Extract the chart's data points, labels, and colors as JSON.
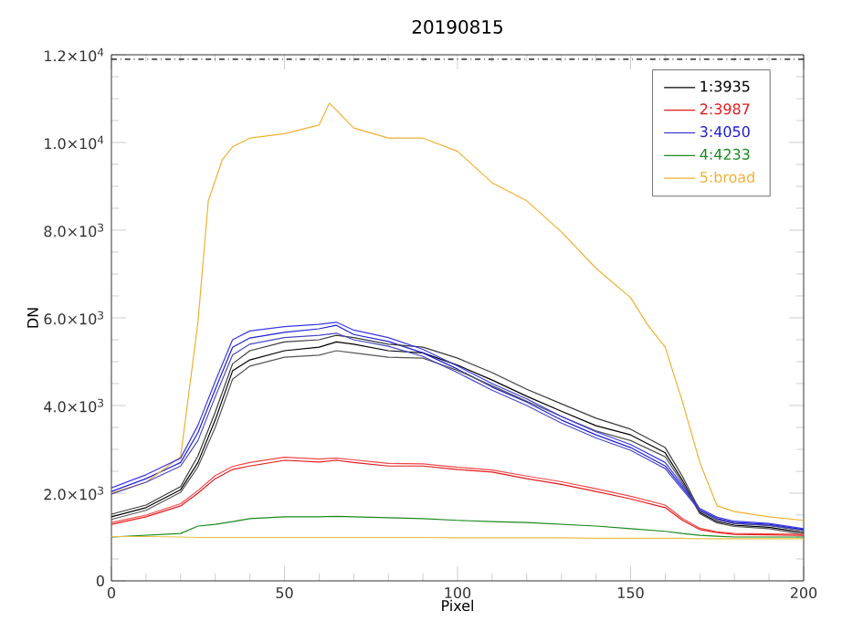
{
  "chart_data": {
    "type": "line",
    "title": "20190815",
    "xlabel": "Pixel",
    "ylabel": "DN",
    "x": [
      0,
      10,
      20,
      25,
      30,
      35,
      40,
      50,
      60,
      65,
      70,
      80,
      90,
      100,
      110,
      120,
      130,
      140,
      150,
      160,
      165,
      170,
      175,
      180,
      190,
      200
    ],
    "series": [
      {
        "name": "1:3935",
        "color": "#000000",
        "values": [
          1460,
          1670,
          2080,
          2700,
          3670,
          4790,
          5040,
          5250,
          5330,
          5450,
          5400,
          5250,
          5200,
          4920,
          4580,
          4210,
          3870,
          3540,
          3330,
          2920,
          2290,
          1560,
          1350,
          1270,
          1220,
          1100
        ]
      },
      {
        "name": "2:3987",
        "color": "#e41a1c",
        "values": [
          1290,
          1460,
          1710,
          2000,
          2330,
          2540,
          2620,
          2750,
          2710,
          2750,
          2700,
          2620,
          2620,
          2540,
          2480,
          2330,
          2200,
          2040,
          1870,
          1670,
          1380,
          1170,
          1100,
          1060,
          1050,
          1040
        ]
      },
      {
        "name": "3:4050",
        "color": "#1f1fd0",
        "values": [
          2040,
          2330,
          2700,
          3380,
          4370,
          5330,
          5540,
          5670,
          5750,
          5830,
          5620,
          5460,
          5200,
          4830,
          4420,
          4080,
          3670,
          3330,
          3040,
          2620,
          2130,
          1620,
          1420,
          1330,
          1290,
          1170
        ]
      },
      {
        "name": "4:4233",
        "color": "#1a8a1a",
        "values": [
          1000,
          1040,
          1080,
          1250,
          1290,
          1350,
          1420,
          1460,
          1460,
          1470,
          1460,
          1440,
          1420,
          1380,
          1350,
          1330,
          1290,
          1250,
          1190,
          1130,
          1080,
          1040,
          1020,
          1000,
          1000,
          1000
        ]
      },
      {
        "name": "5:broad",
        "color": "#f0b030",
        "x": [
          0,
          10,
          20,
          25,
          28,
          32,
          35,
          40,
          50,
          60,
          63,
          70,
          80,
          90,
          100,
          110,
          120,
          130,
          140,
          150,
          155,
          160,
          165,
          170,
          175,
          180,
          190,
          200
        ],
        "values": [
          2000,
          2250,
          2830,
          5900,
          8670,
          9600,
          9900,
          10100,
          10200,
          10400,
          10900,
          10330,
          10100,
          10100,
          9800,
          9080,
          8670,
          7960,
          7130,
          6460,
          5830,
          5330,
          4080,
          2700,
          1710,
          1580,
          1460,
          1380
        ]
      },
      {
        "color": "#3a3a3a",
        "values": [
          1520,
          1730,
          2150,
          2850,
          3850,
          4950,
          5250,
          5450,
          5500,
          5600,
          5550,
          5400,
          5330,
          5080,
          4750,
          4370,
          4040,
          3710,
          3460,
          3040,
          2380,
          1600,
          1390,
          1310,
          1260,
          1150
        ]
      },
      {
        "color": "#555555",
        "values": [
          1400,
          1610,
          2020,
          2600,
          3500,
          4600,
          4900,
          5100,
          5150,
          5250,
          5200,
          5100,
          5080,
          4800,
          4450,
          4100,
          3750,
          3420,
          3200,
          2830,
          2230,
          1530,
          1320,
          1240,
          1190,
          1060
        ]
      },
      {
        "color": "#3838e8",
        "values": [
          2120,
          2420,
          2800,
          3550,
          4550,
          5500,
          5700,
          5800,
          5850,
          5900,
          5720,
          5550,
          5280,
          4900,
          4500,
          4150,
          3750,
          3400,
          3110,
          2700,
          2180,
          1650,
          1450,
          1360,
          1310,
          1190
        ]
      },
      {
        "color": "#4848c0",
        "values": [
          1980,
          2250,
          2620,
          3200,
          4200,
          5150,
          5400,
          5550,
          5600,
          5650,
          5500,
          5350,
          5120,
          4750,
          4350,
          4000,
          3600,
          3260,
          2980,
          2560,
          2080,
          1600,
          1400,
          1310,
          1270,
          1150
        ]
      },
      {
        "color": "#f04848",
        "values": [
          1330,
          1500,
          1760,
          2060,
          2400,
          2610,
          2700,
          2820,
          2780,
          2800,
          2760,
          2680,
          2670,
          2590,
          2530,
          2390,
          2260,
          2100,
          1930,
          1730,
          1420,
          1200,
          1120,
          1080,
          1070,
          1060
        ]
      },
      {
        "color": "#e8c040",
        "values": [
          1010,
          1010,
          1000,
          990,
          990,
          990,
          990,
          990,
          990,
          990,
          990,
          990,
          990,
          980,
          980,
          980,
          980,
          970,
          970,
          970,
          970,
          960,
          960,
          960,
          960,
          960
        ]
      }
    ],
    "xlim": [
      0,
      200
    ],
    "xticks": [
      0,
      50,
      100,
      150,
      200
    ],
    "ylim": [
      0,
      12000
    ],
    "yticks": [
      0,
      {
        "value": 2000,
        "label": "2.0×10$^{3}$"
      },
      {
        "value": 4000,
        "label": "4.0×10$^{3}$"
      },
      {
        "value": 6000,
        "label": "6.0×10$^{3}$"
      },
      {
        "value": 8000,
        "label": "8.0×10$^{3}$"
      },
      {
        "value": 10000,
        "label": "1.0×10$^{4}$"
      },
      {
        "value": 12000,
        "label": "1.2×10$^{4}$"
      }
    ],
    "ref_lines": [
      {
        "axis": "y",
        "value": 11900,
        "line_style": "dashdot",
        "color": "#000000"
      }
    ],
    "legend": "top right",
    "grid": false,
    "marker": "none",
    "line_style": "solid"
  }
}
